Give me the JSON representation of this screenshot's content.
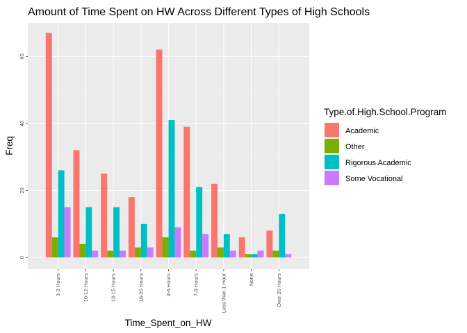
{
  "chart_data": {
    "type": "bar",
    "title": "Amount of Time Spent on HW Across Different Types of High Schools",
    "xlabel": "Time_Spent_on_HW",
    "ylabel": "Freq",
    "categories": [
      "1-3 Hours",
      "10-12 Hours",
      "13-15 Hours",
      "16-20 Hours",
      "4-6 Hours",
      "7-9 Hours",
      "Less than 1 Hour",
      "None",
      "Over 20 Hours"
    ],
    "ylim": [
      -3.5,
      70
    ],
    "yticks": [
      0,
      20,
      40,
      60
    ],
    "grid": true,
    "legend": {
      "title": "Type.of.High.School.Program",
      "position": "right"
    },
    "series": [
      {
        "name": "Academic",
        "color": "#F8766D",
        "values": [
          67,
          32,
          25,
          18,
          62,
          39,
          22,
          6,
          8
        ]
      },
      {
        "name": "Other",
        "color": "#7CAE00",
        "values": [
          6,
          4,
          2,
          3,
          6,
          2,
          3,
          1,
          2
        ]
      },
      {
        "name": "Rigorous Academic",
        "color": "#00BFC4",
        "values": [
          26,
          15,
          15,
          10,
          41,
          21,
          7,
          1,
          13
        ]
      },
      {
        "name": "Some Vocational",
        "color": "#C77CFF",
        "values": [
          15,
          2,
          2,
          3,
          9,
          7,
          2,
          2,
          1
        ]
      }
    ]
  }
}
